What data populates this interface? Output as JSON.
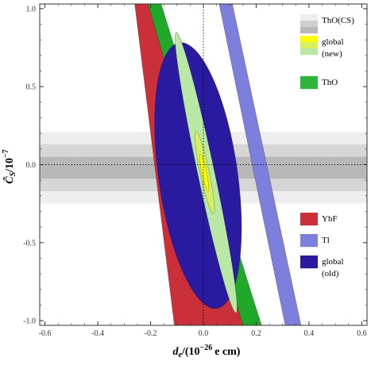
{
  "chart_data": {
    "type": "region-plot",
    "xlabel_main": "d",
    "xlabel_sub": "e",
    "xlabel_rest": "/(10",
    "xlabel_exp": "−26",
    "xlabel_unit": "e cm)",
    "ylabel_main": "C̃",
    "ylabel_sub": "S",
    "ylabel_rest": "/10",
    "ylabel_exp": "−7",
    "xlim": [
      -0.62,
      0.62
    ],
    "ylim": [
      -1.03,
      1.03
    ],
    "x_ticks": [
      -0.6,
      -0.4,
      -0.2,
      0.0,
      0.2,
      0.4,
      0.6
    ],
    "x_tick_labels": [
      "-0.6",
      "-0.4",
      "-0.2",
      "0.0",
      "0.2",
      "0.4",
      "0.6"
    ],
    "y_ticks": [
      -1.0,
      -0.5,
      0.0,
      0.5,
      1.0
    ],
    "y_tick_labels": [
      "-1.0",
      "-0.5",
      "0.0",
      "0.5",
      "1.0"
    ],
    "reference_lines": {
      "x": 0.0,
      "y": 0.0,
      "style": "dotted"
    },
    "regions": [
      {
        "id": "tho-cs-outer",
        "kind": "hband",
        "y": [
          -0.25,
          0.21
        ],
        "color": "#eeeeee"
      },
      {
        "id": "tho-cs-mid",
        "kind": "hband",
        "y": [
          -0.17,
          0.13
        ],
        "color": "#d6d6d6"
      },
      {
        "id": "tho-cs-inner",
        "kind": "hband",
        "y": [
          -0.09,
          0.05
        ],
        "color": "#b8b8b8"
      },
      {
        "id": "tl-band",
        "kind": "band",
        "color": "#7d7fdc",
        "polygon": [
          [
            0.06,
            1.03
          ],
          [
            0.11,
            1.03
          ],
          [
            0.37,
            -1.03
          ],
          [
            0.31,
            -1.03
          ]
        ]
      },
      {
        "id": "ybf-band",
        "kind": "band",
        "color": "#c9303a",
        "polygon": [
          [
            -0.26,
            1.03
          ],
          [
            -0.18,
            1.03
          ],
          [
            0.22,
            -1.03
          ],
          [
            -0.11,
            -1.03
          ]
        ]
      },
      {
        "id": "tho-band",
        "kind": "band",
        "color": "#1fa82a",
        "polygon": [
          [
            -0.21,
            1.03
          ],
          [
            -0.16,
            1.03
          ],
          [
            0.22,
            -1.03
          ],
          [
            0.15,
            -1.03
          ]
        ]
      },
      {
        "id": "global-old",
        "kind": "ellipse",
        "color": "#2a1aa0",
        "center": [
          -0.02,
          -0.07
        ],
        "angle_deg": -8,
        "semi_axes": [
          0.15,
          0.86
        ]
      },
      {
        "id": "global-new-outer",
        "kind": "ellipse",
        "color": "#b9e8a6",
        "center": [
          0.01,
          -0.05
        ],
        "angle_deg": -12,
        "semi_axes": [
          0.032,
          0.92
        ]
      },
      {
        "id": "global-new-mid",
        "kind": "ellipse",
        "color": "#d8f060",
        "center": [
          0.005,
          -0.05
        ],
        "angle_deg": -12,
        "semi_axes": [
          0.017,
          0.27
        ]
      },
      {
        "id": "global-new-inner",
        "kind": "ellipse",
        "color": "#ffff00",
        "center": [
          0.003,
          -0.05
        ],
        "angle_deg": -12,
        "semi_axes": [
          0.009,
          0.12
        ]
      }
    ],
    "legend": [
      {
        "label": "ThO(CS)",
        "colors": [
          "#eeeeee",
          "#d0d0d0",
          "#b8b8b8"
        ]
      },
      {
        "label": "global",
        "label2": "(new)",
        "colors": [
          "#ffff00",
          "#d8f060",
          "#b9e8a6"
        ]
      },
      {
        "label": "ThO",
        "colors": [
          "#2fb53c"
        ]
      },
      {
        "label": "YbF",
        "colors": [
          "#c9303a"
        ]
      },
      {
        "label": "Tl",
        "colors": [
          "#7d7fdc"
        ]
      },
      {
        "label": "global",
        "label2": "(old)",
        "colors": [
          "#2a1aa0"
        ]
      }
    ]
  }
}
